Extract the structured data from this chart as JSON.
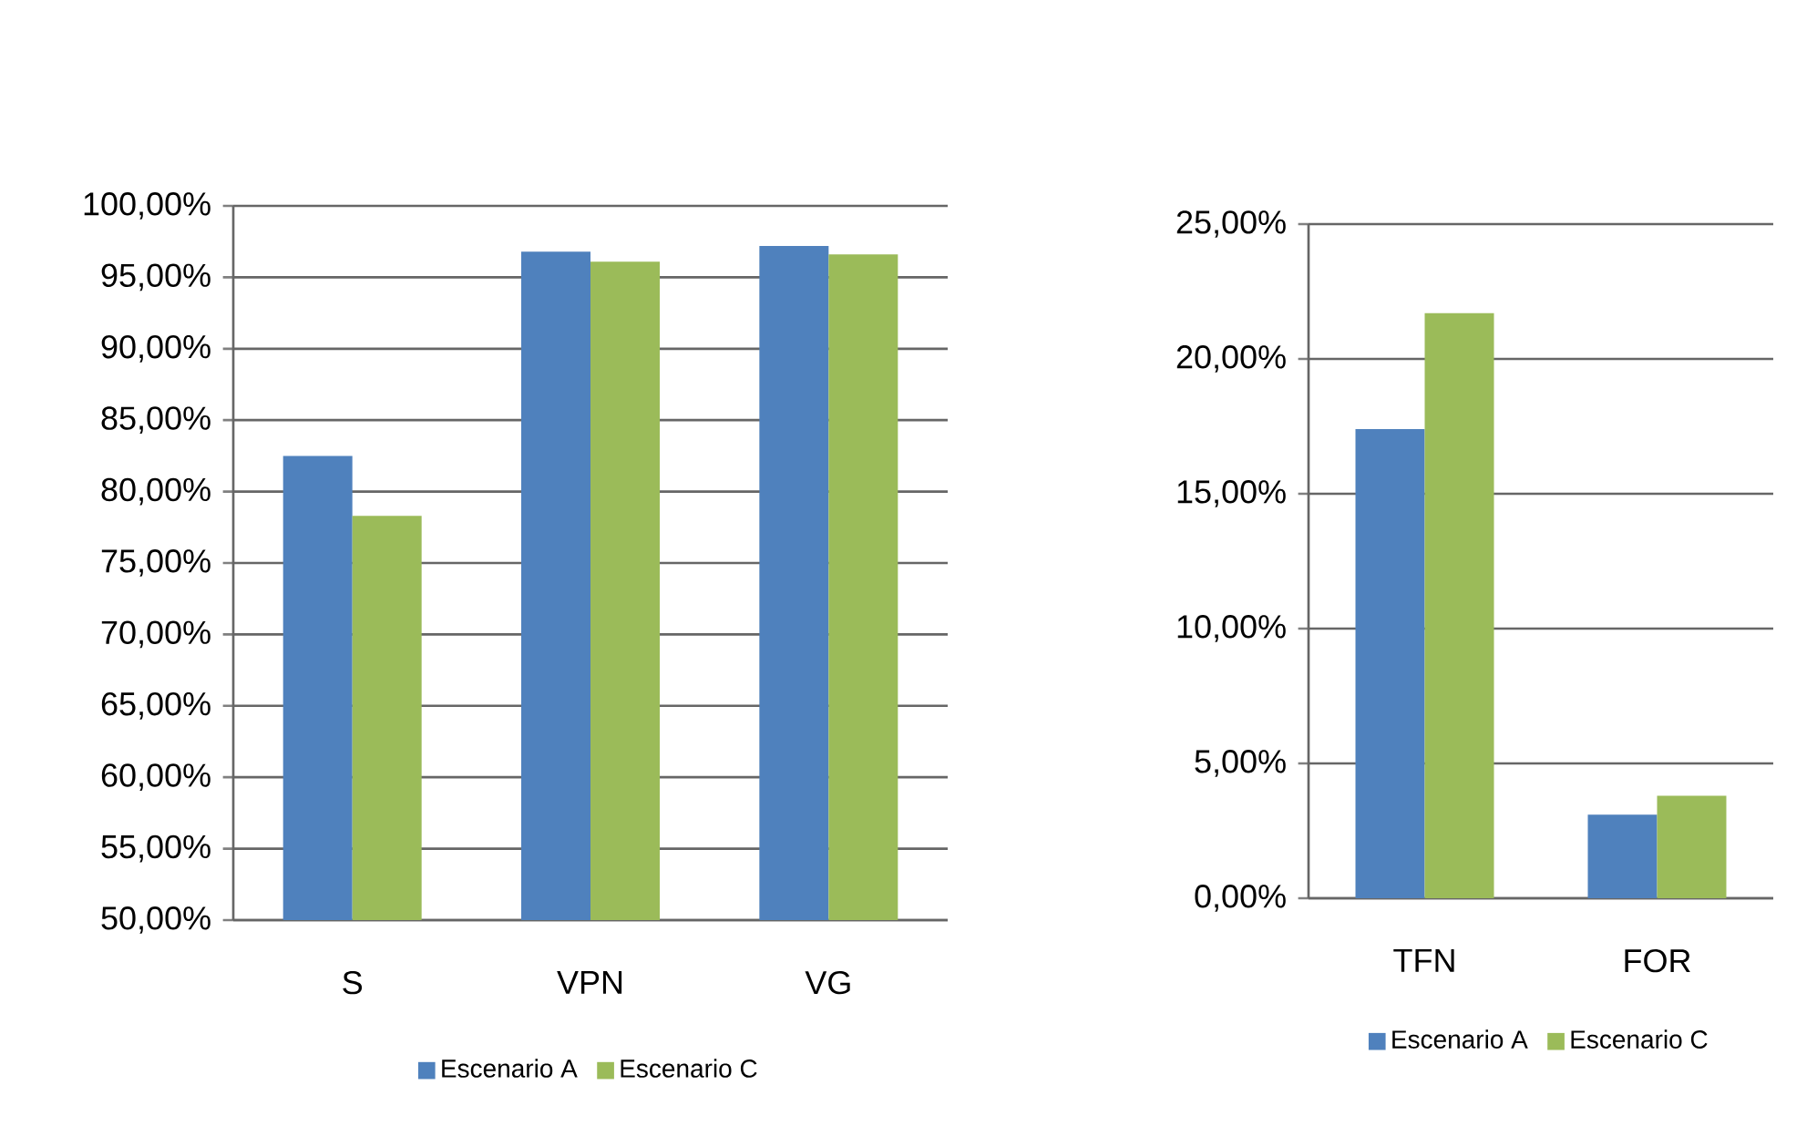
{
  "chart_data": [
    {
      "type": "bar",
      "categories": [
        "S",
        "VPN",
        "VG"
      ],
      "series": [
        {
          "name": "Escenario A",
          "color": "#4f81bd",
          "values": [
            82.5,
            96.8,
            97.2
          ]
        },
        {
          "name": "Escenario C",
          "color": "#9bbb59",
          "values": [
            78.3,
            96.1,
            96.6
          ]
        }
      ],
      "ylim": [
        50,
        100
      ],
      "yticks": [
        {
          "value": 50,
          "label": "50,00%"
        },
        {
          "value": 55,
          "label": "55,00%"
        },
        {
          "value": 60,
          "label": "60,00%"
        },
        {
          "value": 65,
          "label": "65,00%"
        },
        {
          "value": 70,
          "label": "70,00%"
        },
        {
          "value": 75,
          "label": "75,00%"
        },
        {
          "value": 80,
          "label": "80,00%"
        },
        {
          "value": 85,
          "label": "85,00%"
        },
        {
          "value": 90,
          "label": "90,00%"
        },
        {
          "value": 95,
          "label": "95,00%"
        },
        {
          "value": 100,
          "label": "100,00%"
        }
      ],
      "grid": "y",
      "legend": "bottom"
    },
    {
      "type": "bar",
      "categories": [
        "TFN",
        "FOR"
      ],
      "series": [
        {
          "name": "Escenario A",
          "color": "#4f81bd",
          "values": [
            17.4,
            3.1
          ]
        },
        {
          "name": "Escenario C",
          "color": "#9bbb59",
          "values": [
            21.7,
            3.8
          ]
        }
      ],
      "ylim": [
        0,
        25
      ],
      "yticks": [
        {
          "value": 0,
          "label": "0,00%"
        },
        {
          "value": 5,
          "label": "5,00%"
        },
        {
          "value": 10,
          "label": "10,00%"
        },
        {
          "value": 15,
          "label": "15,00%"
        },
        {
          "value": 20,
          "label": "20,00%"
        },
        {
          "value": 25,
          "label": "25,00%"
        }
      ],
      "grid": "y",
      "legend": "bottom"
    }
  ]
}
